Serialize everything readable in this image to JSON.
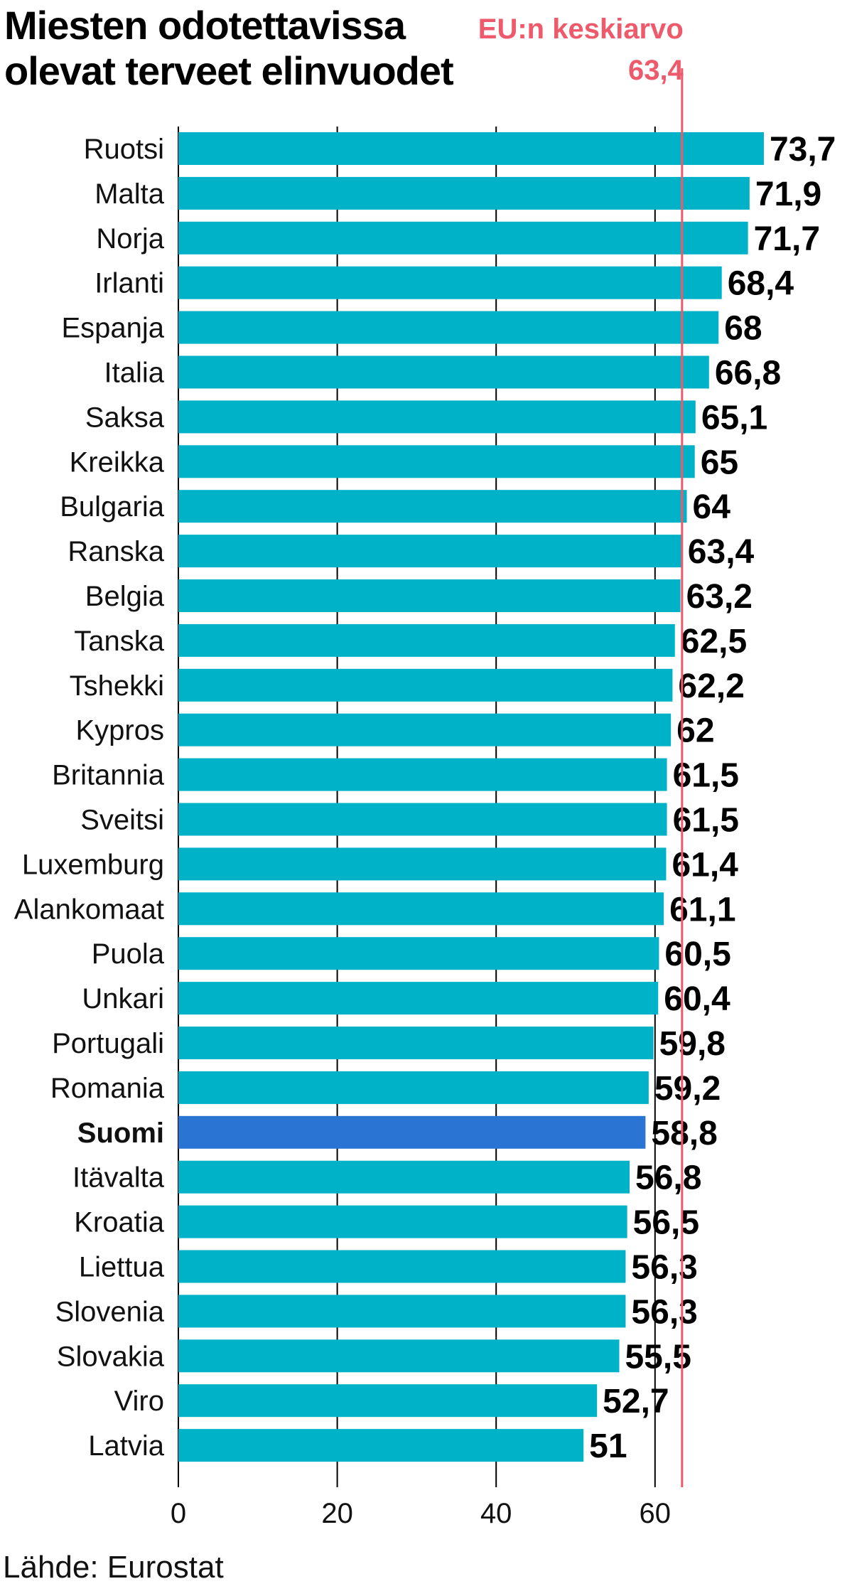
{
  "colors": {
    "bar": "#00b2c7",
    "highlight_bar": "#2a75d3",
    "reference": "#ee5a6b",
    "grid": "#000000"
  },
  "chart_data": {
    "type": "bar",
    "orientation": "horizontal",
    "title_lines": [
      "Miesten odotettavissa",
      "olevat terveet elinvuodet"
    ],
    "categories": [
      "Ruotsi",
      "Malta",
      "Norja",
      "Irlanti",
      "Espanja",
      "Italia",
      "Saksa",
      "Kreikka",
      "Bulgaria",
      "Ranska",
      "Belgia",
      "Tanska",
      "Tshekki",
      "Kypros",
      "Britannia",
      "Sveitsi",
      "Luxemburg",
      "Alankomaat",
      "Puola",
      "Unkari",
      "Portugali",
      "Romania",
      "Suomi",
      "Itävalta",
      "Kroatia",
      "Liettua",
      "Slovenia",
      "Slovakia",
      "Viro",
      "Latvia"
    ],
    "values": [
      73.7,
      71.9,
      71.7,
      68.4,
      68,
      66.8,
      65.1,
      65,
      64,
      63.4,
      63.2,
      62.5,
      62.2,
      62,
      61.5,
      61.5,
      61.4,
      61.1,
      60.5,
      60.4,
      59.8,
      59.2,
      58.8,
      56.8,
      56.5,
      56.3,
      56.3,
      55.5,
      52.7,
      51
    ],
    "value_labels": [
      "73,7",
      "71,9",
      "71,7",
      "68,4",
      "68",
      "66,8",
      "65,1",
      "65",
      "64",
      "63,4",
      "63,2",
      "62,5",
      "62,2",
      "62",
      "61,5",
      "61,5",
      "61,4",
      "61,1",
      "60,5",
      "60,4",
      "59,8",
      "59,2",
      "58,8",
      "56,8",
      "56,5",
      "56,3",
      "56,3",
      "55,5",
      "52,7",
      "51"
    ],
    "highlight": "Suomi",
    "xlim": [
      0,
      85
    ],
    "xticks": [
      0,
      20,
      40,
      60
    ],
    "xtick_labels": [
      "0",
      "20",
      "40",
      "60"
    ],
    "grid": true,
    "reference_line": {
      "value": 63.4,
      "label_lines": [
        "EU:n keskiarvo",
        "63,4"
      ]
    },
    "source": "Lähde: Eurostat"
  }
}
